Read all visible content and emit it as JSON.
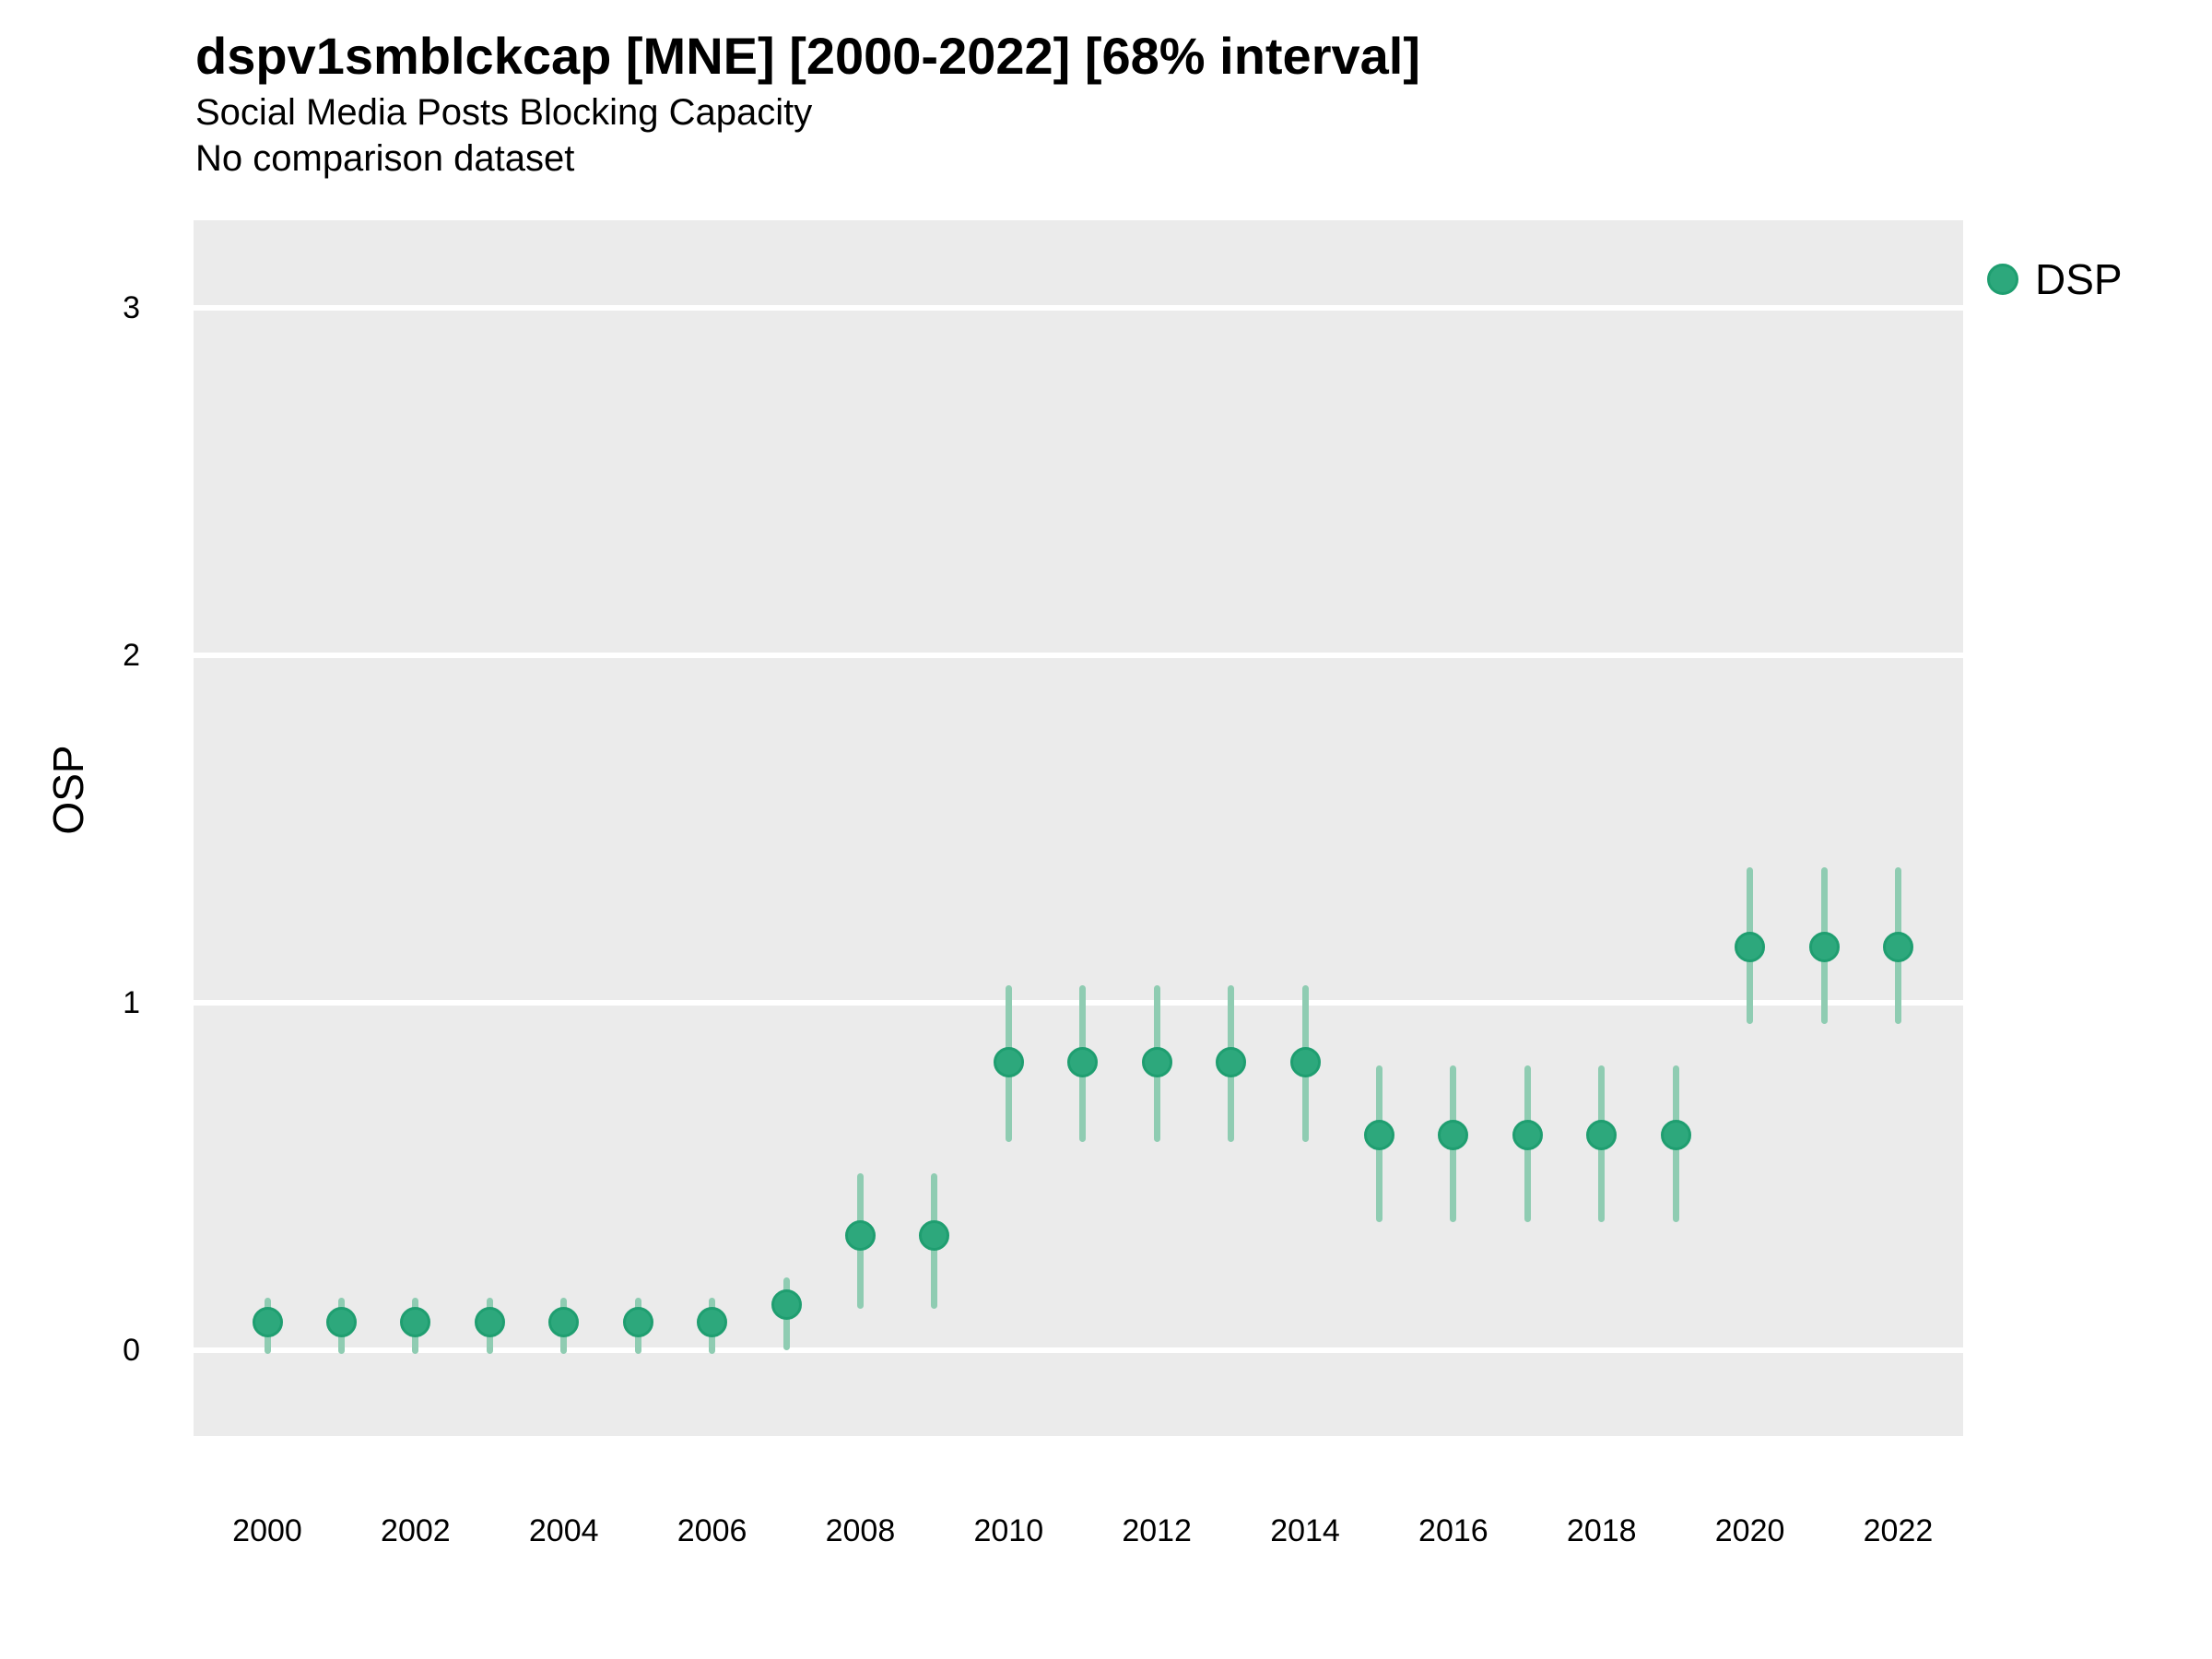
{
  "header": {
    "title": "dspv1smblckcap [MNE] [2000-2022] [68% interval]",
    "subtitle": "Social Media Posts Blocking Capacity",
    "comparison_note": "No comparison dataset"
  },
  "axes": {
    "y_title": "OSP",
    "y_ticks": [
      "0",
      "1",
      "2",
      "3"
    ],
    "x_ticks": [
      "2000",
      "2002",
      "2004",
      "2006",
      "2008",
      "2010",
      "2012",
      "2014",
      "2016",
      "2018",
      "2020",
      "2022"
    ]
  },
  "legend": {
    "items": [
      {
        "label": "DSP",
        "color": "#2DA87C"
      }
    ]
  },
  "colors": {
    "point": "#2DA87C",
    "point_ring": "#1F9E70",
    "interval": "#8FCCB2",
    "panel_bg": "#EBEBEB",
    "grid": "#FFFFFF",
    "text": "#000000"
  },
  "chart_data": {
    "type": "scatter",
    "title": "dspv1smblckcap [MNE] [2000-2022] [68% interval]",
    "subtitle": "Social Media Posts Blocking Capacity",
    "note": "No comparison dataset",
    "xlabel": "",
    "ylabel": "OSP",
    "xlim": [
      1999,
      2023
    ],
    "ylim": [
      -0.25,
      3.25
    ],
    "grid": "major-horizontal",
    "legend_position": "right",
    "interval_level": "68%",
    "series": [
      {
        "name": "DSP",
        "x": [
          2000,
          2001,
          2002,
          2003,
          2004,
          2005,
          2006,
          2007,
          2008,
          2009,
          2010,
          2011,
          2012,
          2013,
          2014,
          2015,
          2016,
          2017,
          2018,
          2019,
          2020,
          2021,
          2022
        ],
        "y": [
          0.08,
          0.08,
          0.08,
          0.08,
          0.08,
          0.08,
          0.08,
          0.13,
          0.33,
          0.33,
          0.83,
          0.83,
          0.83,
          0.83,
          0.83,
          0.62,
          0.62,
          0.62,
          0.62,
          0.62,
          1.16,
          1.16,
          1.16
        ],
        "lo": [
          -0.01,
          -0.01,
          -0.01,
          -0.01,
          -0.01,
          -0.01,
          -0.01,
          0.0,
          0.12,
          0.12,
          0.6,
          0.6,
          0.6,
          0.6,
          0.6,
          0.37,
          0.37,
          0.37,
          0.37,
          0.37,
          0.94,
          0.94,
          0.94
        ],
        "hi": [
          0.15,
          0.15,
          0.15,
          0.15,
          0.15,
          0.15,
          0.15,
          0.21,
          0.51,
          0.51,
          1.05,
          1.05,
          1.05,
          1.05,
          1.05,
          0.82,
          0.82,
          0.82,
          0.82,
          0.82,
          1.39,
          1.39,
          1.39
        ]
      }
    ]
  }
}
